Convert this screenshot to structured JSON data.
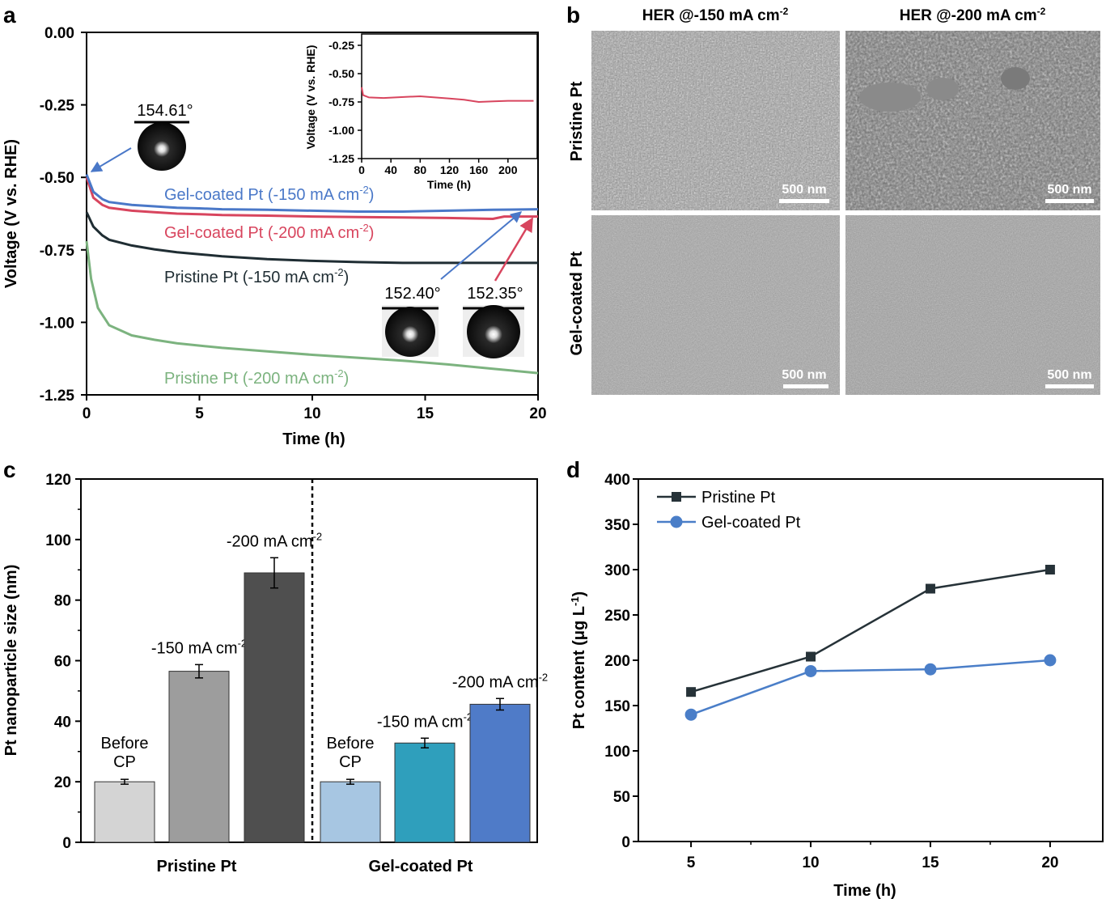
{
  "panels": {
    "a": "a",
    "b": "b",
    "c": "c",
    "d": "d"
  },
  "chart_data": [
    {
      "panel": "a",
      "type": "line",
      "xlabel": "Time (h)",
      "ylabel": "Voltage (V vs. RHE)",
      "xlim": [
        0,
        20
      ],
      "ylim": [
        -1.25,
        0.0
      ],
      "x_ticks": [
        "0",
        "5",
        "10",
        "15",
        "20"
      ],
      "y_ticks": [
        "0.00",
        "-0.25",
        "-0.50",
        "-0.75",
        "-1.00",
        "-1.25"
      ],
      "series": [
        {
          "name": "Gel-coated Pt (-150 mA cm",
          "sup": "-2",
          "close": ")",
          "color": "#4a78c8",
          "x": [
            0,
            0.3,
            0.7,
            1,
            2,
            3,
            4,
            5,
            6,
            8,
            10,
            12,
            14,
            16,
            18,
            20
          ],
          "y": [
            -0.49,
            -0.55,
            -0.575,
            -0.585,
            -0.595,
            -0.6,
            -0.605,
            -0.607,
            -0.61,
            -0.612,
            -0.615,
            -0.618,
            -0.618,
            -0.615,
            -0.612,
            -0.61
          ]
        },
        {
          "name": "Gel-coated Pt (-200 mA cm",
          "sup": "-2",
          "close": ")",
          "color": "#d8455e",
          "x": [
            0,
            0.3,
            0.7,
            1,
            2,
            3,
            4,
            5,
            6,
            8,
            10,
            12,
            14,
            16,
            18,
            18.5,
            20
          ],
          "y": [
            -0.5,
            -0.57,
            -0.595,
            -0.605,
            -0.615,
            -0.62,
            -0.625,
            -0.627,
            -0.63,
            -0.632,
            -0.635,
            -0.637,
            -0.638,
            -0.64,
            -0.643,
            -0.635,
            -0.635
          ]
        },
        {
          "name": "Pristine Pt (-150 mA cm",
          "sup": "-2",
          "close": ")",
          "color": "#1f2d33",
          "x": [
            0,
            0.3,
            0.7,
            1,
            2,
            3,
            4,
            5,
            6,
            8,
            10,
            12,
            14,
            16,
            18,
            20
          ],
          "y": [
            -0.62,
            -0.67,
            -0.7,
            -0.715,
            -0.735,
            -0.748,
            -0.758,
            -0.765,
            -0.772,
            -0.782,
            -0.788,
            -0.792,
            -0.795,
            -0.795,
            -0.795,
            -0.795
          ]
        },
        {
          "name": "Pristine Pt (-200 mA cm",
          "sup": "-2",
          "close": ")",
          "color": "#7cb37f",
          "x": [
            0,
            0.2,
            0.5,
            1,
            2,
            3,
            4,
            5,
            6,
            8,
            10,
            12,
            14,
            16,
            18,
            20
          ],
          "y": [
            -0.72,
            -0.85,
            -0.95,
            -1.01,
            -1.045,
            -1.06,
            -1.072,
            -1.08,
            -1.088,
            -1.1,
            -1.112,
            -1.122,
            -1.132,
            -1.145,
            -1.16,
            -1.175
          ]
        }
      ],
      "contact_angles": [
        "154.61°",
        "152.40°",
        "152.35°"
      ],
      "inset": {
        "xlabel": "Time (h)",
        "ylabel": "Voltage (V vs. RHE)",
        "xlim": [
          0,
          240
        ],
        "ylim": [
          -1.25,
          -0.15
        ],
        "x_ticks": [
          "0",
          "40",
          "80",
          "120",
          "160",
          "200"
        ],
        "y_ticks": [
          "-0.25",
          "-0.50",
          "-0.75",
          "-1.00",
          "-1.25"
        ],
        "color": "#d8455e",
        "x": [
          0,
          2,
          10,
          30,
          60,
          80,
          100,
          120,
          140,
          160,
          180,
          200,
          220,
          235
        ],
        "y": [
          -0.62,
          -0.69,
          -0.71,
          -0.715,
          -0.705,
          -0.7,
          -0.71,
          -0.72,
          -0.73,
          -0.75,
          -0.745,
          -0.74,
          -0.74,
          -0.74
        ]
      }
    },
    {
      "panel": "c",
      "type": "bar",
      "ylabel": "Pt nanoparticle size (nm)",
      "ylim": [
        0,
        120
      ],
      "y_ticks": [
        "0",
        "20",
        "40",
        "60",
        "80",
        "100",
        "120"
      ],
      "groups": [
        "Pristine Pt",
        "Gel-coated Pt"
      ],
      "bars": [
        {
          "group": 0,
          "label1": "Before",
          "label2": "CP",
          "value": 20,
          "error": 0.8,
          "color": "#d4d4d4"
        },
        {
          "group": 0,
          "label1": "-150 mA cm",
          "sup": "-2",
          "value": 56.5,
          "error": 2.2,
          "color": "#9d9d9d"
        },
        {
          "group": 0,
          "label1": "-200 mA cm",
          "sup": "-2",
          "value": 89,
          "error": 5.0,
          "color": "#4f4f4f"
        },
        {
          "group": 1,
          "label1": "Before",
          "label2": "CP",
          "value": 20,
          "error": 0.8,
          "color": "#a7c6e2"
        },
        {
          "group": 1,
          "label1": "-150 mA cm",
          "sup": "-2",
          "value": 32.8,
          "error": 1.6,
          "color": "#2f9fbc"
        },
        {
          "group": 1,
          "label1": "-200 mA cm",
          "sup": "-2",
          "value": 45.6,
          "error": 1.9,
          "color": "#4f7bc8"
        }
      ]
    },
    {
      "panel": "d",
      "type": "line",
      "xlabel": "Time (h)",
      "ylabel": "Pt content (μg L",
      "ylabel_sup": "-1",
      "ylabel_close": ")",
      "x": [
        5,
        10,
        15,
        20
      ],
      "xlim": [
        2.8,
        22.2
      ],
      "ylim": [
        0,
        400
      ],
      "x_ticks": [
        "5",
        "10",
        "15",
        "20"
      ],
      "y_ticks": [
        "0",
        "50",
        "100",
        "150",
        "200",
        "250",
        "300",
        "350",
        "400"
      ],
      "legend": "top-left",
      "series": [
        {
          "name": "Pristine Pt",
          "marker": "square",
          "color": "#263238",
          "values": [
            165,
            204,
            279,
            300
          ]
        },
        {
          "name": "Gel-coated Pt",
          "marker": "circle",
          "color": "#4a7ec8",
          "values": [
            140,
            188,
            190,
            200
          ]
        }
      ]
    }
  ],
  "sem": {
    "col_titles": [
      "HER @-150 mA cm",
      "HER @-200 mA cm"
    ],
    "col_sup": "-2",
    "row_titles": [
      "Pristine Pt",
      "Gel-coated Pt"
    ],
    "scale_bar": "500 nm"
  }
}
